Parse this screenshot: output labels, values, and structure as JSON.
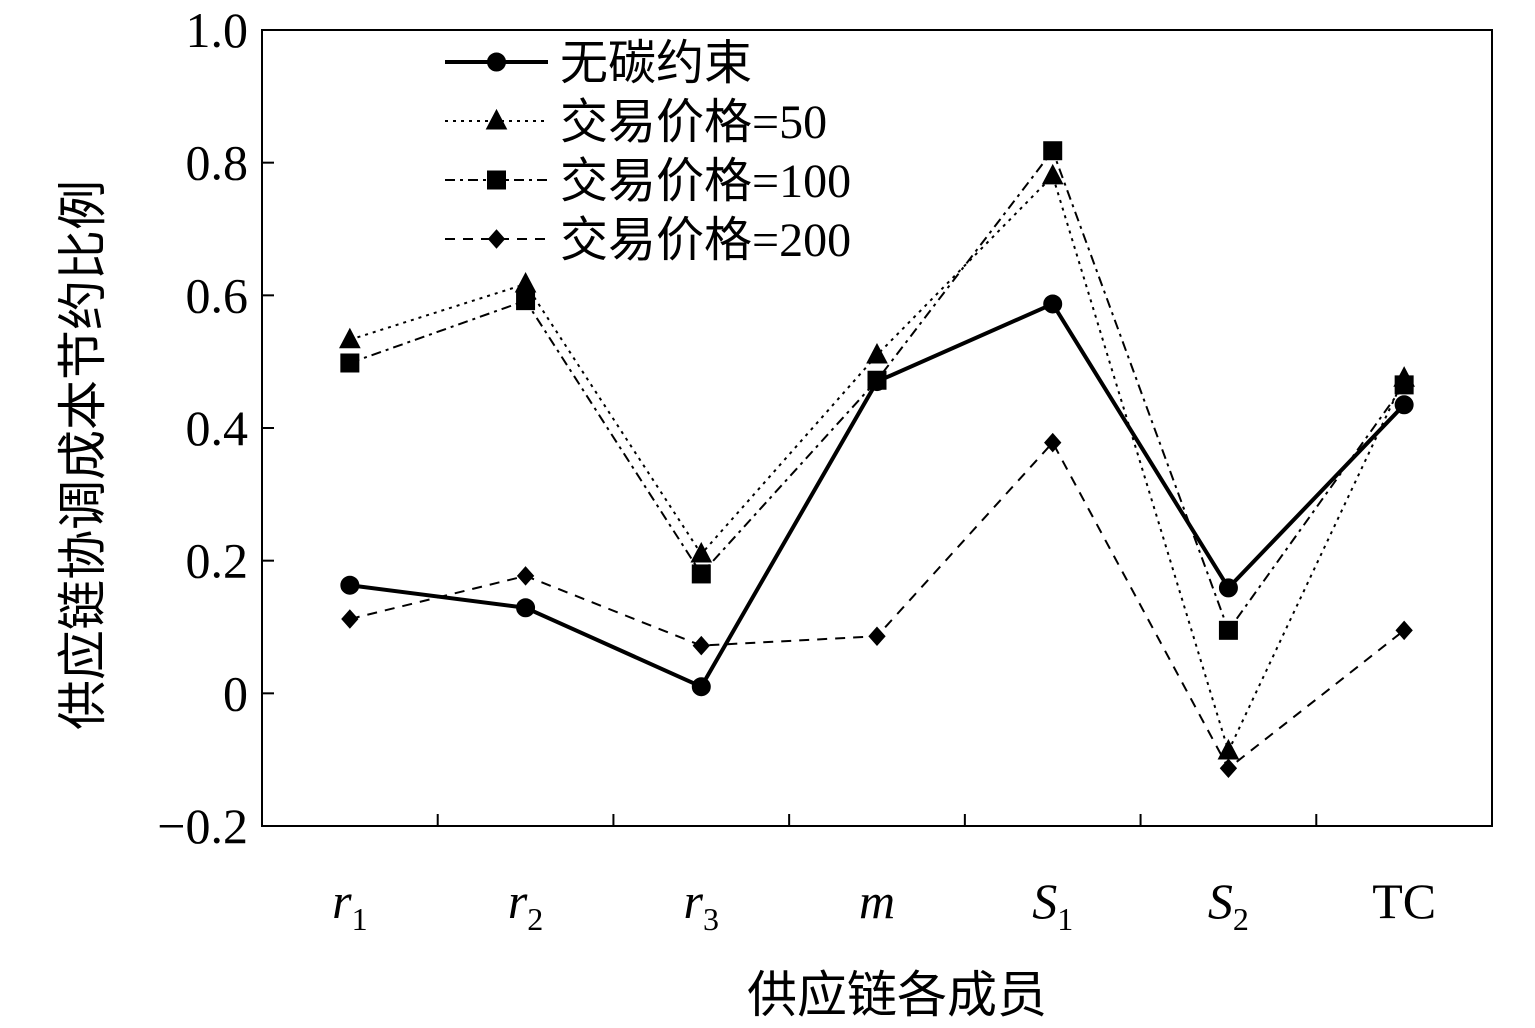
{
  "chart_data": {
    "type": "line",
    "title": "",
    "xlabel": "供应链各成员",
    "ylabel": "供应链协调成本节约比例",
    "categories": [
      {
        "base": "r",
        "sub": "1",
        "italic": true
      },
      {
        "base": "r",
        "sub": "2",
        "italic": true
      },
      {
        "base": "r",
        "sub": "3",
        "italic": true
      },
      {
        "base": "m",
        "sub": "",
        "italic": true
      },
      {
        "base": "S",
        "sub": "1",
        "italic": true
      },
      {
        "base": "S",
        "sub": "2",
        "italic": true
      },
      {
        "base": "TC",
        "sub": "",
        "italic": false
      }
    ],
    "ylim": [
      -0.2,
      1.0
    ],
    "yticks": [
      -0.2,
      0,
      0.2,
      0.4,
      0.6,
      0.8,
      1.0
    ],
    "ytick_labels": [
      "−0.2",
      "0",
      "0.2",
      "0.4",
      "0.6",
      "0.8",
      "1.0"
    ],
    "grid": false,
    "legend_position": "top-left",
    "series": [
      {
        "name": "无碳约束",
        "marker": "circle",
        "dash": "solid",
        "color": "#000000",
        "values": [
          0.163,
          0.129,
          0.01,
          0.47,
          0.587,
          0.159,
          0.435
        ]
      },
      {
        "name": "交易价格=50",
        "marker": "triangle",
        "dash": "dotted",
        "color": "#000000",
        "values": [
          0.533,
          0.617,
          0.21,
          0.51,
          0.78,
          -0.087,
          0.475
        ]
      },
      {
        "name": "交易价格=100",
        "marker": "square",
        "dash": "dashdot",
        "color": "#000000",
        "values": [
          0.498,
          0.592,
          0.18,
          0.472,
          0.818,
          0.095,
          0.465
        ]
      },
      {
        "name": "交易价格=200",
        "marker": "diamond",
        "dash": "dashed",
        "color": "#000000",
        "values": [
          0.112,
          0.177,
          0.072,
          0.086,
          0.378,
          -0.113,
          0.095
        ]
      }
    ]
  }
}
